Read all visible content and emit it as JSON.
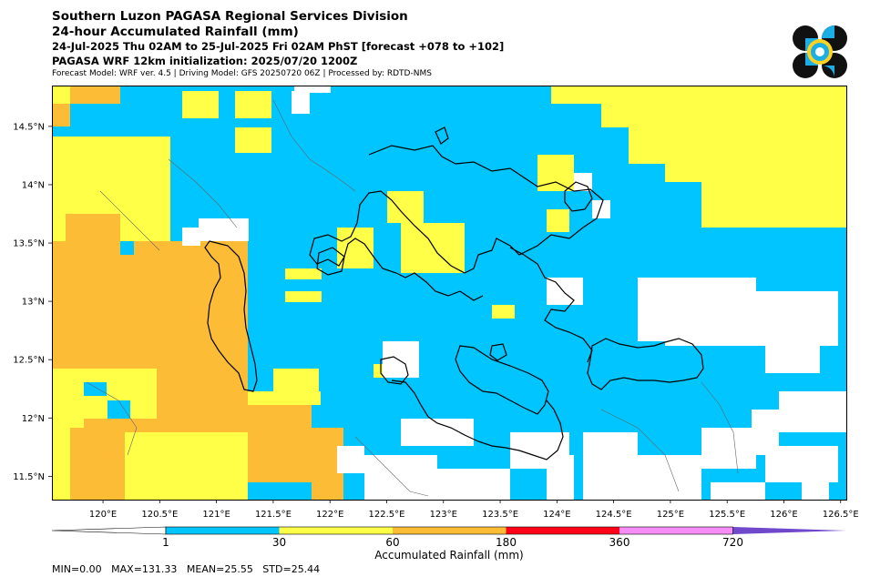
{
  "header": {
    "title": "Southern Luzon PAGASA Regional Services Division",
    "subtitle": "24-hour Accumulated Rainfall (mm)",
    "period": "24-Jul-2025 Thu 02AM to 25-Jul-2025 Fri 02AM PhST [forecast +078 to +102]",
    "init": "PAGASA WRF 12km initialization: 2025/07/20 1200Z",
    "model_info": "Forecast Model: WRF ver. 4.5 | Driving Model: GFS 20250720 06Z | Processed by: RDTD-NMS"
  },
  "map": {
    "lon_ticks": [
      "120°E",
      "120.5°E",
      "121°E",
      "121.5°E",
      "122°E",
      "122.5°E",
      "123°E",
      "123.5°E",
      "124°E",
      "124.5°E",
      "125°E",
      "125.5°E",
      "126°E",
      "126.5°E"
    ],
    "lat_ticks": [
      "14.5°N",
      "14°N",
      "13.5°N",
      "13°N",
      "12.5°N",
      "12°N",
      "11.5°N"
    ],
    "lon_values": [
      120,
      120.5,
      121,
      121.5,
      122,
      122.5,
      123,
      123.5,
      124,
      124.5,
      125,
      125.5,
      126,
      126.5
    ],
    "lat_values": [
      14.5,
      14,
      13.5,
      13,
      12.5,
      12,
      11.5
    ],
    "extent": {
      "lon_min": 119.55,
      "lon_max": 126.55,
      "lat_min": 11.3,
      "lat_max": 14.85
    }
  },
  "colorbar": {
    "label": "Accumulated Rainfall (mm)",
    "ticks": [
      "1",
      "30",
      "60",
      "180",
      "360",
      "720"
    ],
    "colors": [
      "#00c5ff",
      "#ffff47",
      "#fcbc36",
      "#ff0019",
      "#f78ef7",
      "#7048cc"
    ]
  },
  "legend_colors": {
    "none": "#ffffff",
    "r1_30": "#00c5ff",
    "r30_60": "#ffff47",
    "r60_180": "#fcbc36"
  },
  "stats": {
    "text": "MIN=0.00   MAX=131.33   MEAN=25.55   STD=25.44"
  },
  "logo": {
    "icon": "pagasa-seal-icon"
  }
}
